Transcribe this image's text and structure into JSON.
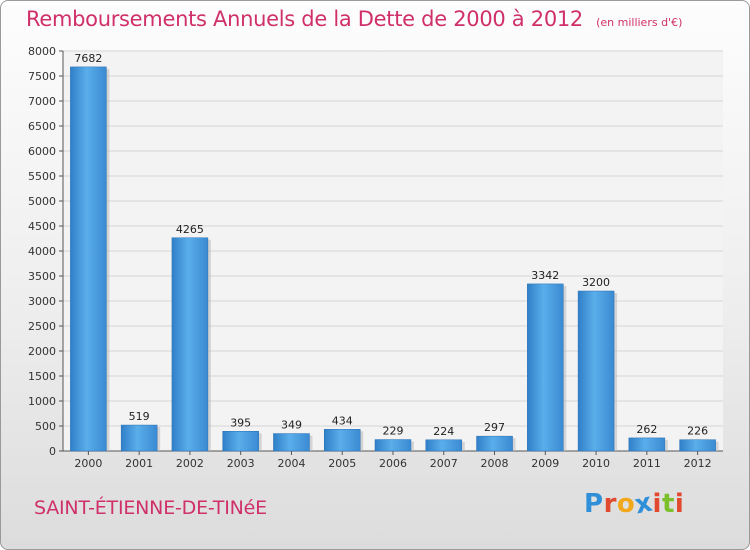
{
  "chart_data": {
    "type": "bar",
    "title": "Remboursements Annuels de la Dette de 2000 à 2012",
    "subtitle": "(en milliers d'€)",
    "categories": [
      "2000",
      "2001",
      "2002",
      "2003",
      "2004",
      "2005",
      "2006",
      "2007",
      "2008",
      "2009",
      "2010",
      "2011",
      "2012"
    ],
    "values": [
      7682,
      519,
      4265,
      395,
      349,
      434,
      229,
      224,
      297,
      3342,
      3200,
      262,
      226
    ],
    "ylim": [
      0,
      8000
    ],
    "yticks": [
      0,
      500,
      1000,
      1500,
      2000,
      2500,
      3000,
      3500,
      4000,
      4500,
      5000,
      5500,
      6000,
      6500,
      7000,
      7500,
      8000
    ],
    "grid": true,
    "legend": "none",
    "bar_color": "#4a9fe0"
  },
  "commune": "SAINT-ÉTIENNE-DE-TINéE",
  "logo": {
    "text": "Proxiti",
    "letters": [
      {
        "ch": "P",
        "color": "#2f8fd8"
      },
      {
        "ch": "r",
        "color": "#e24a2f"
      },
      {
        "ch": "o",
        "color": "#f2a81b"
      },
      {
        "ch": "x",
        "color": "#2f8fd8"
      },
      {
        "ch": "i",
        "color": "#e24a2f"
      },
      {
        "ch": "t",
        "color": "#7bbf2a"
      },
      {
        "ch": "i",
        "color": "#e24a2f"
      }
    ]
  }
}
